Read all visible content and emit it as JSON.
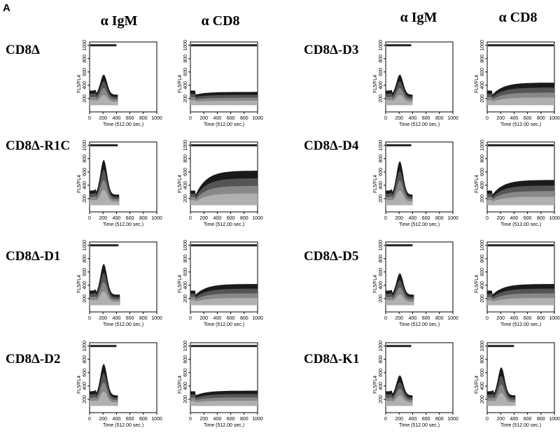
{
  "panel_label": "A",
  "columns": [
    "α IgM",
    "α CD8"
  ],
  "rows": [
    {
      "label": "CD8Δ"
    },
    {
      "label": "CD8Δ-R1C"
    },
    {
      "label": "CD8Δ-D1"
    },
    {
      "label": "CD8Δ-D2"
    },
    {
      "label": "CD8Δ-D3"
    },
    {
      "label": "CD8Δ-D4"
    },
    {
      "label": "CD8Δ-D5"
    },
    {
      "label": "CD8Δ-K1"
    }
  ],
  "axes": {
    "y_label": "FL5/FL4",
    "x_label": "Time (512.00 sec.)",
    "x_ticks": [
      0,
      200,
      400,
      600,
      800,
      1000
    ],
    "y_ticks": [
      200,
      400,
      600,
      800,
      1000
    ]
  }
}
